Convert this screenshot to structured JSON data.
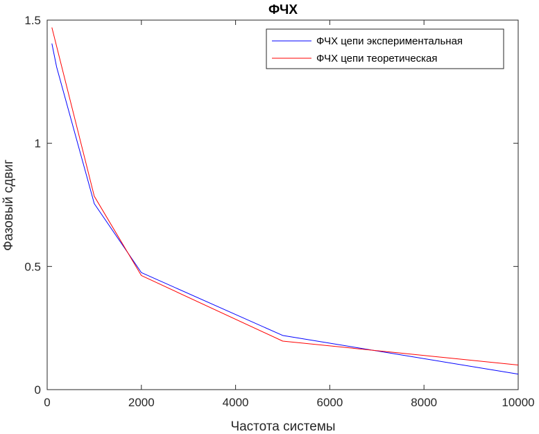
{
  "chart_data": {
    "type": "line",
    "title": "ФЧХ",
    "xlabel": "Частота системы",
    "ylabel": "Фазовый сдвиг",
    "xlim": [
      0,
      10000
    ],
    "ylim": [
      0,
      1.5
    ],
    "xticks": [
      0,
      2000,
      4000,
      6000,
      8000,
      10000
    ],
    "xtick_labels": [
      "0",
      "2000",
      "4000",
      "6000",
      "8000",
      "10000"
    ],
    "yticks": [
      0,
      0.5,
      1,
      1.5
    ],
    "ytick_labels": [
      "0",
      "0.5",
      "1",
      "1.5"
    ],
    "grid": false,
    "legend_position": "top-right",
    "series": [
      {
        "name": "ФЧХ цепи экспериментальная",
        "color": "#0000ff",
        "x": [
          100,
          200,
          1000,
          2000,
          5000,
          10000
        ],
        "y": [
          1.405,
          1.31,
          0.755,
          0.475,
          0.22,
          0.063
        ]
      },
      {
        "name": "ФЧХ цепи теоретическая",
        "color": "#ff0000",
        "x": [
          100,
          1000,
          2000,
          5000,
          10000
        ],
        "y": [
          1.47,
          0.785,
          0.463,
          0.197,
          0.1
        ]
      }
    ]
  }
}
